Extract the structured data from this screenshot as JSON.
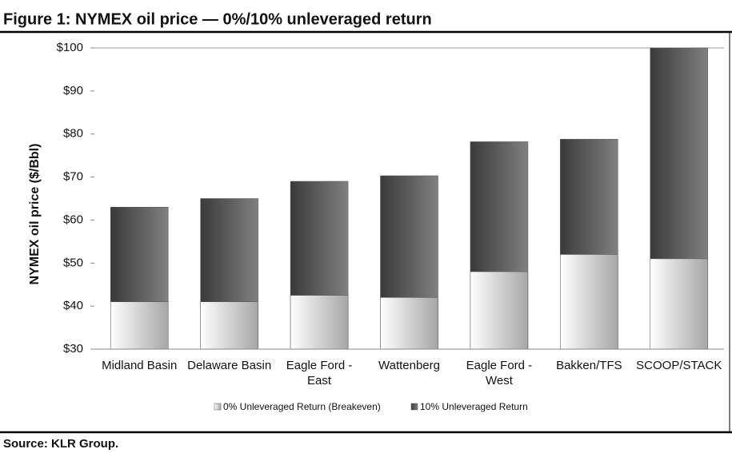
{
  "chart_data": {
    "type": "bar",
    "title": "Figure 1: NYMEX oil price — 0%/10% unleveraged return",
    "y_label": "NYMEX oil price ($/Bbl)",
    "source": "Source: KLR Group.",
    "categories": [
      "Midland Basin",
      "Delaware Basin",
      "Eagle Ford - East",
      "Wattenberg",
      "Eagle Ford - West",
      "Bakken/TFS",
      "SCOOP/STACK"
    ],
    "series": [
      {
        "name": "0% Unleveraged Return (Breakeven)",
        "color": "#a6a6a6",
        "values": [
          41,
          41,
          42.5,
          42,
          48,
          52,
          51
        ]
      },
      {
        "name": "10% Unleveraged Return",
        "color": "#3a3a3a",
        "values": [
          63,
          65,
          69,
          70.3,
          78.2,
          78.8,
          100
        ]
      }
    ],
    "ylim": [
      30,
      100
    ],
    "yticks": [
      {
        "value": 30,
        "label": "$30"
      },
      {
        "value": 40,
        "label": "$40"
      },
      {
        "value": 50,
        "label": "$50"
      },
      {
        "value": 60,
        "label": "$60"
      },
      {
        "value": 70,
        "label": "$70"
      },
      {
        "value": 80,
        "label": "$80"
      },
      {
        "value": 90,
        "label": "$90"
      },
      {
        "value": 100,
        "label": "$100"
      }
    ],
    "grid": false,
    "legend": "bottom"
  }
}
